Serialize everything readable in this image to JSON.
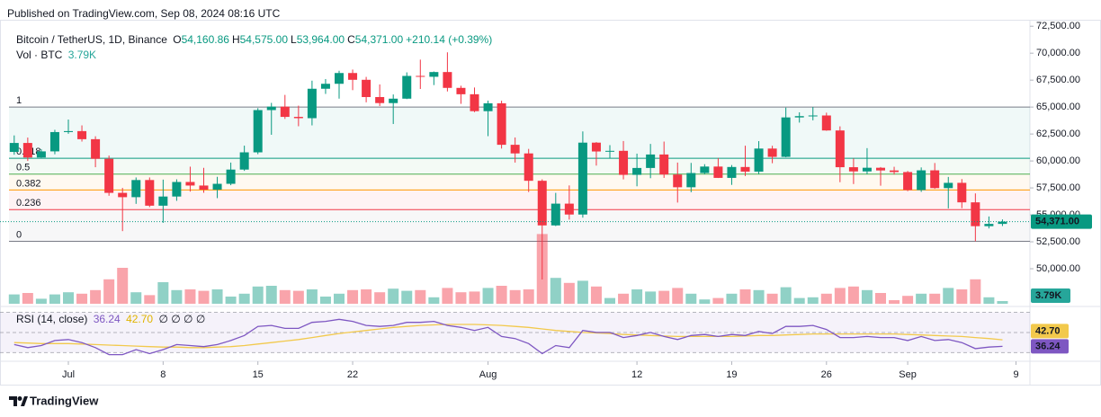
{
  "header": {
    "published": "Published on TradingView.com, Sep 08, 2024 08:16 UTC"
  },
  "chart_data": {
    "type": "candlestick",
    "title": "Bitcoin / TetherUS, 1D, Binance",
    "legend": [
      {
        "key": "O",
        "label": "54,160.86"
      },
      {
        "key": "H",
        "label": "54,575.00"
      },
      {
        "key": "L",
        "label": "53,964.00"
      },
      {
        "key": "C",
        "label": "54,371.00"
      }
    ],
    "change": "+210.14 (+0.39%)",
    "x": [
      "Jun 27",
      "Jun 28",
      "Jun 29",
      "Jun 30",
      "Jul 1",
      "Jul 2",
      "Jul 3",
      "Jul 4",
      "Jul 5",
      "Jul 6",
      "Jul 7",
      "Jul 8",
      "Jul 9",
      "Jul 10",
      "Jul 11",
      "Jul 12",
      "Jul 13",
      "Jul 14",
      "Jul 15",
      "Jul 16",
      "Jul 17",
      "Jul 18",
      "Jul 19",
      "Jul 20",
      "Jul 21",
      "Jul 22",
      "Jul 23",
      "Jul 24",
      "Jul 25",
      "Jul 26",
      "Jul 27",
      "Jul 28",
      "Jul 29",
      "Jul 30",
      "Jul 31",
      "Aug 1",
      "Aug 2",
      "Aug 3",
      "Aug 4",
      "Aug 5",
      "Aug 6",
      "Aug 7",
      "Aug 8",
      "Aug 9",
      "Aug 10",
      "Aug 11",
      "Aug 12",
      "Aug 13",
      "Aug 14",
      "Aug 15",
      "Aug 16",
      "Aug 17",
      "Aug 18",
      "Aug 19",
      "Aug 20",
      "Aug 21",
      "Aug 22",
      "Aug 23",
      "Aug 24",
      "Aug 25",
      "Aug 26",
      "Aug 27",
      "Aug 28",
      "Aug 29",
      "Aug 30",
      "Aug 31",
      "Sep 1",
      "Sep 2",
      "Sep 3",
      "Sep 4",
      "Sep 5",
      "Sep 6",
      "Sep 7",
      "Sep 8"
    ],
    "open": [
      60840,
      61670,
      60320,
      60890,
      62680,
      62770,
      62020,
      60200,
      57040,
      56640,
      58230,
      55850,
      56700,
      58050,
      57720,
      57340,
      57880,
      59200,
      60800,
      64720,
      65040,
      64090,
      63970,
      66700,
      67160,
      68160,
      67530,
      65930,
      65370,
      65780,
      67890,
      67810,
      68250,
      66780,
      66190,
      64620,
      65350,
      61500,
      60700,
      58160,
      54020,
      56040,
      55030,
      61700,
      60880,
      60940,
      58710,
      59350,
      60600,
      58740,
      57560,
      58880,
      59480,
      58430,
      59440,
      59010,
      61150,
      60380,
      64040,
      64160,
      64220,
      62830,
      59420,
      59030,
      59370,
      59120,
      58970,
      57300,
      59130,
      57480,
      57970,
      56160,
      53950,
      54160.86
    ],
    "high": [
      62370,
      62170,
      61100,
      62890,
      63840,
      63300,
      62290,
      60500,
      57500,
      58470,
      58470,
      58270,
      58300,
      59470,
      59360,
      58530,
      59850,
      61420,
      64900,
      65390,
      66130,
      65130,
      67450,
      67600,
      68370,
      68480,
      67800,
      67100,
      66170,
      68220,
      69400,
      68300,
      70080,
      66980,
      66810,
      65600,
      65590,
      62180,
      61120,
      58300,
      57040,
      57730,
      62740,
      61750,
      61470,
      61850,
      60680,
      61580,
      61800,
      59850,
      59820,
      59700,
      60270,
      59620,
      61420,
      61840,
      61410,
      64950,
      64510,
      65000,
      64480,
      63210,
      60230,
      61190,
      59440,
      59460,
      59070,
      59400,
      59810,
      58520,
      58320,
      56990,
      54850,
      54575
    ],
    "low": [
      60580,
      60000,
      60300,
      60620,
      62520,
      61800,
      59420,
      56770,
      53490,
      56020,
      55720,
      54260,
      56300,
      57160,
      57050,
      56550,
      57750,
      59080,
      60630,
      62430,
      63900,
      63220,
      63300,
      66220,
      65780,
      66570,
      65440,
      65100,
      63430,
      65740,
      66680,
      67040,
      66450,
      65300,
      64530,
      62300,
      61150,
      59850,
      57120,
      49000,
      53960,
      54560,
      54740,
      59570,
      60260,
      58290,
      57650,
      58400,
      58430,
      56140,
      57100,
      58780,
      58420,
      57780,
      58600,
      58780,
      59790,
      60340,
      63560,
      63770,
      62800,
      58030,
      57860,
      58760,
      57700,
      58740,
      57200,
      57130,
      57410,
      55600,
      55620,
      52550,
      53740,
      53964
    ],
    "close": [
      61670,
      60320,
      60890,
      62680,
      62770,
      62020,
      60200,
      57040,
      56640,
      58230,
      55850,
      56700,
      58050,
      57720,
      57340,
      57880,
      59200,
      60800,
      64720,
      65040,
      64090,
      63970,
      66700,
      67160,
      68160,
      67530,
      65930,
      65370,
      65780,
      67890,
      67810,
      68250,
      66780,
      66190,
      64620,
      65350,
      61500,
      60700,
      58160,
      54020,
      56040,
      55030,
      61700,
      60880,
      60940,
      58710,
      59350,
      60600,
      58740,
      57560,
      58880,
      59480,
      58430,
      59440,
      59010,
      61150,
      60380,
      64040,
      64160,
      64220,
      62830,
      59420,
      59030,
      59370,
      59120,
      58970,
      57300,
      59130,
      57480,
      57970,
      56160,
      53950,
      54160.86,
      54371
    ],
    "up_color": "#089981",
    "down_color": "#f23645",
    "last_price_label": "54,371.00",
    "ylim": [
      46750,
      73100
    ],
    "yticks": [
      {
        "value": 72500,
        "label": "72,500.00"
      },
      {
        "value": 70000,
        "label": "70,000.00"
      },
      {
        "value": 67500,
        "label": "67,500.00"
      },
      {
        "value": 65000,
        "label": "65,000.00"
      },
      {
        "value": 62500,
        "label": "62,500.00"
      },
      {
        "value": 60000,
        "label": "60,000.00"
      },
      {
        "value": 57500,
        "label": "57,500.00"
      },
      {
        "value": 55000,
        "label": "55,000.00"
      },
      {
        "value": 52500,
        "label": "52,500.00"
      },
      {
        "value": 50000,
        "label": "50,000.00"
      }
    ],
    "xticks": [
      {
        "value": "Jul 1",
        "label": "Jul"
      },
      {
        "value": "Jul 8",
        "label": "8"
      },
      {
        "value": "Jul 15",
        "label": "15"
      },
      {
        "value": "Jul 22",
        "label": "22"
      },
      {
        "value": "Aug 1",
        "label": "Aug"
      },
      {
        "value": "Aug 12",
        "label": "12"
      },
      {
        "value": "Aug 19",
        "label": "19"
      },
      {
        "value": "Aug 26",
        "label": "26"
      },
      {
        "value": "Sep 1",
        "label": "Sep"
      },
      {
        "value": "Sep 9",
        "label": "9"
      }
    ],
    "fib_levels": [
      {
        "level": 1,
        "price": 65000,
        "color": "#787b86"
      },
      {
        "level": 0.618,
        "price": 60244,
        "color": "#089981"
      },
      {
        "level": 0.5,
        "price": 58775,
        "color": "#4caf50"
      },
      {
        "level": 0.382,
        "price": 57306,
        "color": "#ff9800"
      },
      {
        "level": 0.236,
        "price": 55488,
        "color": "#f23645"
      },
      {
        "level": 0,
        "price": 52550,
        "color": "#787b86"
      }
    ],
    "volume": {
      "title": "Vol · BTC",
      "values": [
        13,
        15,
        7,
        13,
        16,
        14,
        19,
        34,
        50,
        16,
        12,
        30,
        19,
        20,
        18,
        20,
        10,
        14,
        24,
        25,
        19,
        18,
        20,
        10,
        14,
        19,
        20,
        16,
        21,
        18,
        19,
        9,
        22,
        16,
        17,
        22,
        25,
        19,
        20,
        97,
        36,
        29,
        32,
        24,
        8,
        14,
        20,
        17,
        18,
        22,
        14,
        6,
        8,
        14,
        20,
        19,
        14,
        23,
        8,
        9,
        14,
        22,
        24,
        19,
        15,
        5,
        11,
        14,
        14,
        22,
        20,
        34,
        9,
        3.79
      ],
      "last_label": "3.79K",
      "up_color": "rgba(8,153,129,0.45)",
      "down_color": "rgba(242,54,69,0.45)",
      "badge_color": "#26a69a"
    },
    "rsi": {
      "title": "RSI (14, close)",
      "values": [
        38,
        35,
        37,
        42,
        43,
        40,
        35,
        28,
        28,
        33,
        29,
        33,
        38,
        37,
        36,
        38,
        42,
        47,
        56,
        57,
        54,
        54,
        60,
        61,
        63,
        61,
        57,
        56,
        57,
        60,
        60,
        61,
        57,
        55,
        52,
        55,
        46,
        44,
        39,
        29,
        37,
        35,
        52,
        50,
        50,
        45,
        47,
        50,
        46,
        43,
        47,
        48,
        46,
        48,
        47,
        51,
        49,
        56,
        56,
        57,
        53,
        45,
        45,
        46,
        45,
        45,
        42,
        46,
        42,
        43,
        40,
        34,
        35.5,
        36.24
      ],
      "last_label": "36.24",
      "color": "#7e57c2",
      "ma_values": [
        40,
        39.5,
        39,
        39,
        39,
        38.5,
        38,
        37.5,
        37,
        36.5,
        36,
        35.5,
        35.5,
        35,
        35,
        35.5,
        36,
        37,
        38.5,
        40,
        41.5,
        43,
        45,
        47,
        49,
        50.5,
        52,
        53.5,
        55,
        56,
        57,
        57.5,
        58,
        58,
        58,
        57.5,
        57,
        56,
        55,
        53.5,
        52,
        51,
        50,
        49.5,
        49,
        48,
        47.5,
        47,
        46.5,
        46,
        46,
        46,
        46,
        46,
        46.5,
        47,
        47,
        47.5,
        48,
        48.5,
        48.5,
        48.5,
        48.5,
        48.5,
        48.5,
        48.5,
        48,
        47.5,
        47,
        46.5,
        46,
        45,
        44,
        42.7
      ],
      "ma_last_label": "42.70",
      "ma_color": "#f2c94c",
      "placeholders": "∅ ∅ ∅ ∅",
      "ylim": [
        25,
        74
      ],
      "levels": [
        70,
        50,
        30
      ]
    }
  },
  "footer": {
    "brand": "TradingView"
  }
}
